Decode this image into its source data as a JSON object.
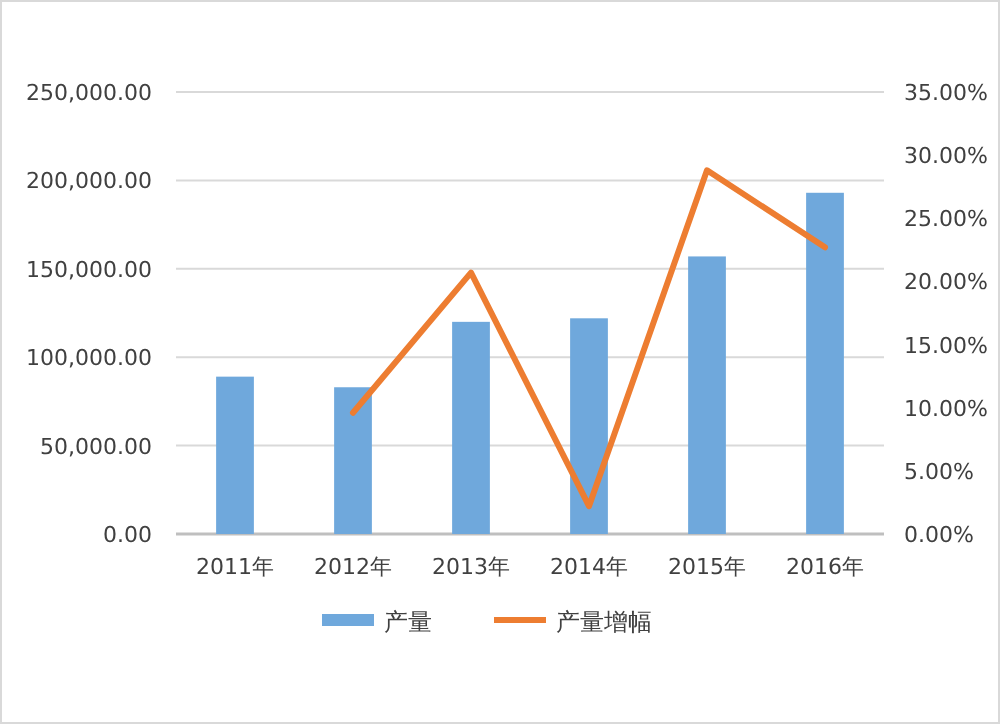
{
  "chart_data": {
    "type": "bar",
    "categories": [
      "2011年",
      "2012年",
      "2013年",
      "2014年",
      "2015年",
      "2016年"
    ],
    "series": [
      {
        "name": "产量",
        "color": "#6fa8dc",
        "values": [
          89000,
          83000,
          120000,
          122000,
          157000,
          193000
        ]
      },
      {
        "name": "产量增幅",
        "type": "line",
        "axis": "y2",
        "color": "#ed7d31",
        "values": [
          null,
          9.6,
          20.7,
          2.2,
          28.8,
          22.7
        ]
      }
    ],
    "ylim": [
      0,
      250000
    ],
    "yticks": [
      {
        "value": 0,
        "label": "0.00"
      },
      {
        "value": 50000,
        "label": "50,000.00"
      },
      {
        "value": 100000,
        "label": "100,000.00"
      },
      {
        "value": 150000,
        "label": "150,000.00"
      },
      {
        "value": 200000,
        "label": "200,000.00"
      },
      {
        "value": 250000,
        "label": "250,000.00"
      }
    ],
    "y2lim": [
      0,
      35
    ],
    "y2ticks": [
      {
        "value": 0,
        "label": "0.00%"
      },
      {
        "value": 5,
        "label": "5.00%"
      },
      {
        "value": 10,
        "label": "10.00%"
      },
      {
        "value": 15,
        "label": "15.00%"
      },
      {
        "value": 20,
        "label": "20.00%"
      },
      {
        "value": 25,
        "label": "25.00%"
      },
      {
        "value": 30,
        "label": "30.00%"
      },
      {
        "value": 35,
        "label": "35.00%"
      }
    ],
    "grid": "y",
    "legend": "bottom"
  }
}
